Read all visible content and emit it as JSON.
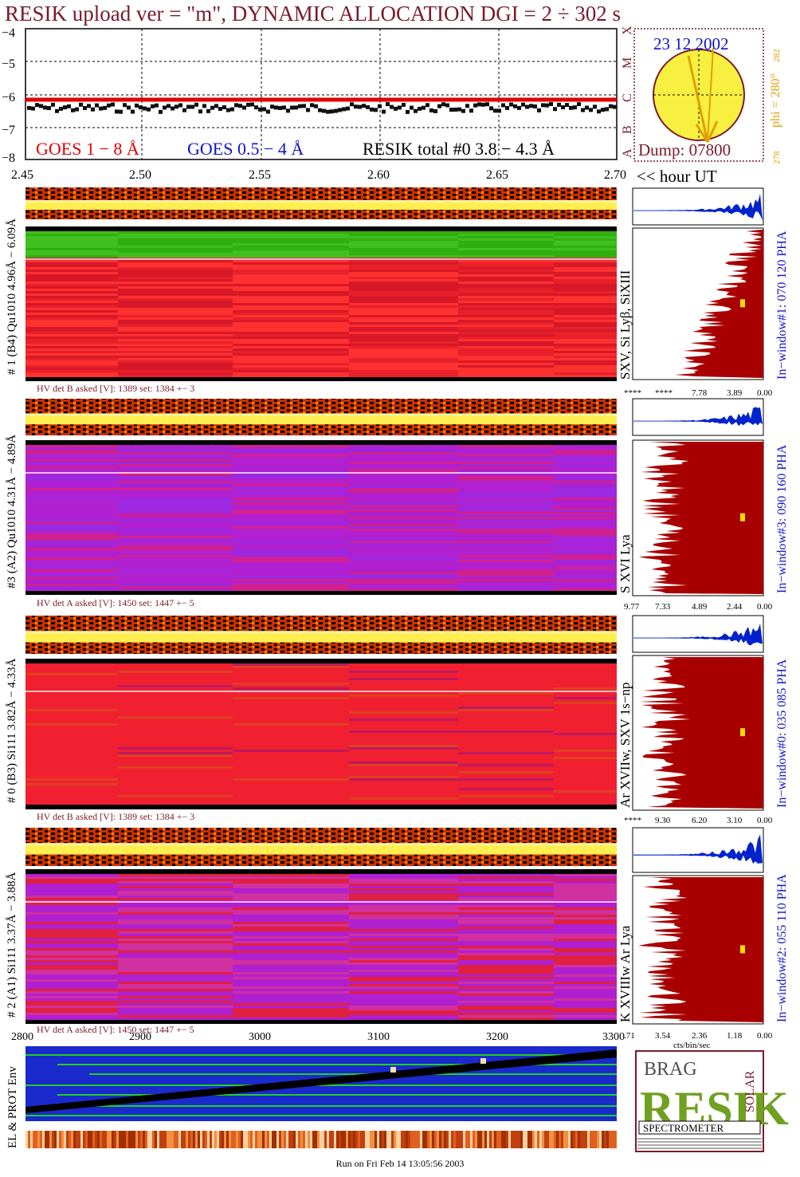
{
  "title": "RESIK upload ver = \"m\", DYNAMIC ALLOCATION  DGI =   2 ÷ 302 s",
  "goes": {
    "ytick_labels": [
      "−4",
      "−5",
      "−6",
      "−7",
      "−8"
    ],
    "class_labels": [
      "X",
      "M",
      "C",
      "B",
      "A"
    ],
    "legend_goes_long": "GOES 1 − 8 Å",
    "legend_goes_short": "GOES 0.5 − 4 Å",
    "legend_resik": "RESIK total #0  3.8 − 4.3 Å",
    "xtick_labels": [
      "2.45",
      "2.50",
      "2.55",
      "2.60",
      "2.65",
      "2.70"
    ],
    "xaxis_suffix": "<< hour UT"
  },
  "sun": {
    "date": "23 12 2002",
    "phi": "phi = 280°",
    "phi_sup": "282",
    "phi_low": "278",
    "dump": "Dump: 07800"
  },
  "colors": {
    "title": "#7a1a2a",
    "goes_long": "#e00000",
    "goes_short": "#1010d0",
    "resik_total": "#000000",
    "hist_dark": "#a80000",
    "hist_spectrum": "#0022cc",
    "phi_orange": "#e0a000"
  },
  "panels": [
    {
      "left_label": "# 1 (B4) Qu1010 4.96Å − 6.09Å",
      "right_label": "SXV, Si Lyβ, SiXIII",
      "window_label": "In−window#1:  070 120 PHA",
      "hv": "HV det B asked [V]:  1389 set:  1384  +−    3",
      "hist_ticks": [
        "****",
        "****",
        "7.78",
        "3.89",
        "0.00"
      ]
    },
    {
      "left_label": "#3 (A2) Qu1010  4.31Å − 4.89Å",
      "right_label": "S XVI Lya",
      "window_label": "In−window#3:  090 160 PHA",
      "hv": "HV det A asked [V]:  1450 set:  1447  +−    5",
      "hist_ticks": [
        "9.77",
        "7.33",
        "4.89",
        "2.44",
        "0.00"
      ]
    },
    {
      "left_label": "# 0 (B3) Si111  3.82Å − 4.33Å",
      "right_label": "Ar XVIIw,  SXV 1s−np",
      "window_label": "In−window#0:  035 085 PHA",
      "hv": "HV det B asked [V]:  1389 set:  1384  +−    3",
      "hist_ticks": [
        "****",
        "9.30",
        "6.20",
        "3.10",
        "0.00"
      ]
    },
    {
      "left_label": "# 2 (A1) Si111  3.37Å − 3.88Å",
      "right_label": "K XVIIIw  Ar Lya",
      "window_label": "In−window#2:  055 110 PHA",
      "hv": "HV det A asked [V]:  1450 set:  1447  +−    5",
      "hist_ticks": [
        ".71",
        "3.54",
        "2.36",
        "1.18",
        "0.00"
      ],
      "hist_unit": "cts/bin/sec"
    }
  ],
  "bottom": {
    "xtick_labels": [
      "2800",
      "2900",
      "3000",
      "3100",
      "3200",
      "3300"
    ],
    "left_label": "EL & PROT Env"
  },
  "logo": {
    "letters": "RESIK",
    "small_left": "BRAG",
    "small_right": "SOLAR",
    "caption": "SPECTROMETER"
  },
  "footer": "Run on Fri Feb 14 13:05:56 2003"
}
